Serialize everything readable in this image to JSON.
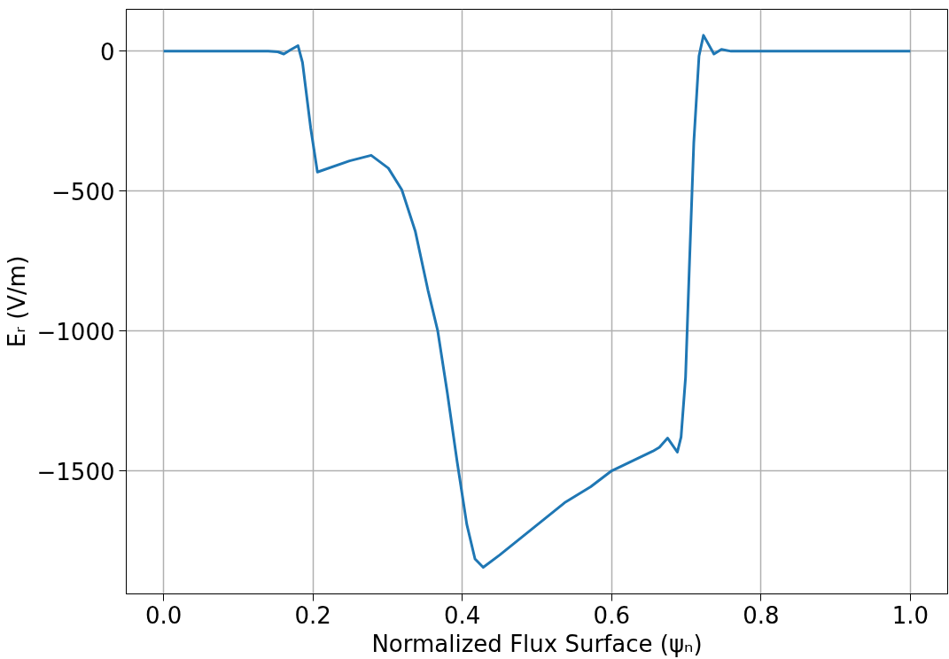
{
  "chart_data": {
    "type": "line",
    "xlabel": "Normalized Flux Surface (ψₙ)",
    "ylabel": "Eᵣ (V/m)",
    "xlim": [
      -0.05,
      1.05
    ],
    "ylim": [
      -1940,
      150
    ],
    "xticks": [
      {
        "value": 0,
        "label": "0.0"
      },
      {
        "value": 0.2,
        "label": "0.2"
      },
      {
        "value": 0.4,
        "label": "0.4"
      },
      {
        "value": 0.6,
        "label": "0.6"
      },
      {
        "value": 0.8,
        "label": "0.8"
      },
      {
        "value": 1,
        "label": "1.0"
      }
    ],
    "yticks": [
      0,
      {
        "value": -500,
        "label": "−500"
      },
      {
        "value": -1000,
        "label": "−1000"
      },
      {
        "value": -1500,
        "label": "−1500"
      }
    ],
    "grid": true,
    "line_style": "solid",
    "series": [
      {
        "color": "#1f77b4",
        "x": [
          0,
          0.05,
          0.1,
          0.14,
          0.153,
          0.161,
          0.17,
          0.18,
          0.186,
          0.197,
          0.206,
          0.249,
          0.278,
          0.301,
          0.319,
          0.337,
          0.354,
          0.367,
          0.38,
          0.393,
          0.406,
          0.417,
          0.428,
          0.45,
          0.537,
          0.572,
          0.6,
          0.655,
          0.664,
          0.675,
          0.688,
          0.693,
          0.699,
          0.704,
          0.71,
          0.717,
          0.723,
          0.737,
          0.747,
          0.76,
          0.8,
          0.9,
          1.0
        ],
        "values": [
          0,
          0,
          0,
          0,
          -2,
          -10,
          5,
          20,
          -40,
          -275,
          -432,
          -392,
          -372,
          -418,
          -495,
          -643,
          -854,
          -998,
          -1222,
          -1466,
          -1691,
          -1815,
          -1845,
          -1801,
          -1614,
          -1557,
          -1500,
          -1430,
          -1416,
          -1383,
          -1433,
          -1379,
          -1165,
          -776,
          -328,
          -17,
          57,
          -10,
          7,
          0,
          0,
          0,
          0
        ]
      }
    ]
  }
}
